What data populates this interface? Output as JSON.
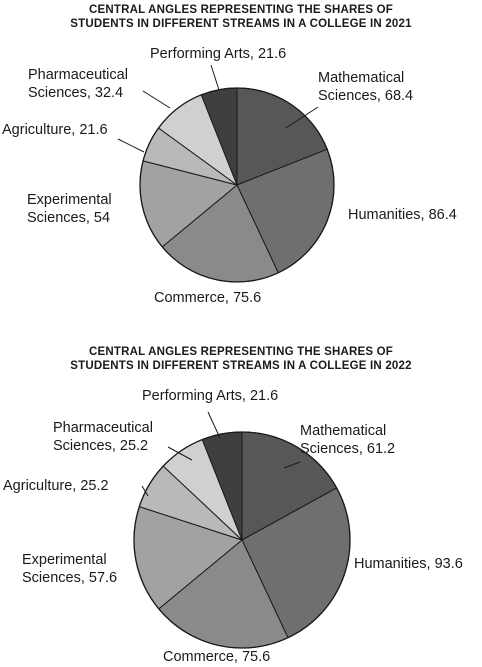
{
  "chart_data": [
    {
      "type": "pie",
      "title": [
        "CENTRAL ANGLES REPRESENTING THE SHARES OF",
        "STUDENTS IN DIFFERENT STREAMS IN A COLLEGE IN 2021"
      ],
      "categories": [
        "Mathematical Sciences",
        "Humanities",
        "Commerce",
        "Experimental Sciences",
        "Agriculture",
        "Pharmaceutical Sciences",
        "Performing Arts"
      ],
      "values": [
        68.4,
        86.4,
        75.6,
        54,
        21.6,
        32.4,
        21.6
      ],
      "labels": [
        [
          "Mathematical",
          "Sciences, 68.4"
        ],
        [
          "Humanities, 86.4"
        ],
        [
          "Commerce, 75.6"
        ],
        [
          "Experimental",
          "Sciences, 54"
        ],
        [
          "Agriculture, 21.6"
        ],
        [
          "Pharmaceutical",
          "Sciences, 32.4"
        ],
        [
          "Performing Arts, 21.6"
        ]
      ],
      "colors": [
        "#575757",
        "#6f6f6f",
        "#8a8a8a",
        "#a2a2a2",
        "#b9b9b9",
        "#d0d0d0",
        "#3f3f3f"
      ]
    },
    {
      "type": "pie",
      "title": [
        "CENTRAL ANGLES REPRESENTING THE SHARES OF",
        "STUDENTS IN DIFFERENT STREAMS IN A COLLEGE IN 2022"
      ],
      "categories": [
        "Mathematical Sciences",
        "Humanities",
        "Commerce",
        "Experimental Sciences",
        "Agriculture",
        "Pharmaceutical Sciences",
        "Performing Arts"
      ],
      "values": [
        61.2,
        93.6,
        75.6,
        57.6,
        25.2,
        25.2,
        21.6
      ],
      "labels": [
        [
          "Mathematical",
          "Sciences, 61.2"
        ],
        [
          "Humanities, 93.6"
        ],
        [
          "Commerce, 75.6"
        ],
        [
          "Experimental",
          "Sciences, 57.6"
        ],
        [
          "Agriculture, 25.2"
        ],
        [
          "Pharmaceutical",
          "Sciences, 25.2"
        ],
        [
          "Performing Arts, 21.6"
        ]
      ],
      "colors": [
        "#575757",
        "#6f6f6f",
        "#8a8a8a",
        "#a2a2a2",
        "#b9b9b9",
        "#d0d0d0",
        "#3f3f3f"
      ]
    }
  ]
}
